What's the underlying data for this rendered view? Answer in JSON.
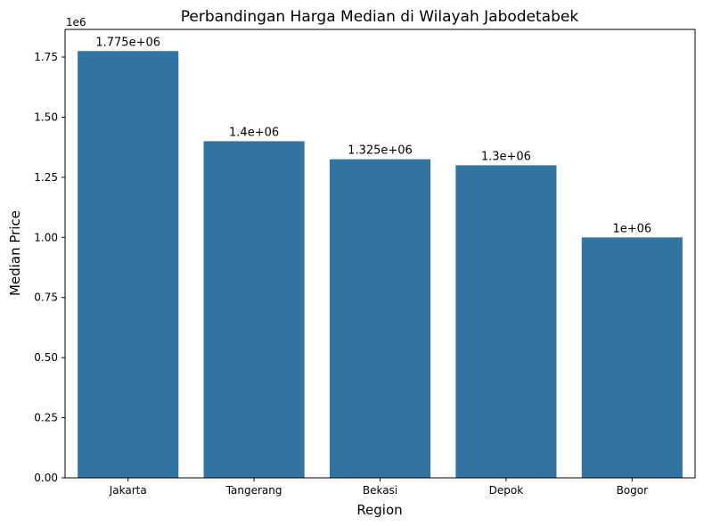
{
  "chart_data": {
    "type": "bar",
    "title": "Perbandingan Harga Median di Wilayah Jabodetabek",
    "xlabel": "Region",
    "ylabel": "Median Price",
    "y_offset_label": "1e6",
    "categories": [
      "Jakarta",
      "Tangerang",
      "Bekasi",
      "Depok",
      "Bogor"
    ],
    "values": [
      1775000,
      1400000,
      1325000,
      1300000,
      1000000
    ],
    "value_labels": [
      "1.775e+06",
      "1.4e+06",
      "1.325e+06",
      "1.3e+06",
      "1e+06"
    ],
    "ylim": [
      0,
      1865000
    ],
    "yticks": [
      0,
      250000,
      500000,
      750000,
      1000000,
      1250000,
      1500000,
      1750000
    ],
    "ytick_labels": [
      "0.00",
      "0.25",
      "0.50",
      "0.75",
      "1.00",
      "1.25",
      "1.50",
      "1.75"
    ],
    "bar_color": "#3274a1",
    "grid": false,
    "legend": "none"
  }
}
